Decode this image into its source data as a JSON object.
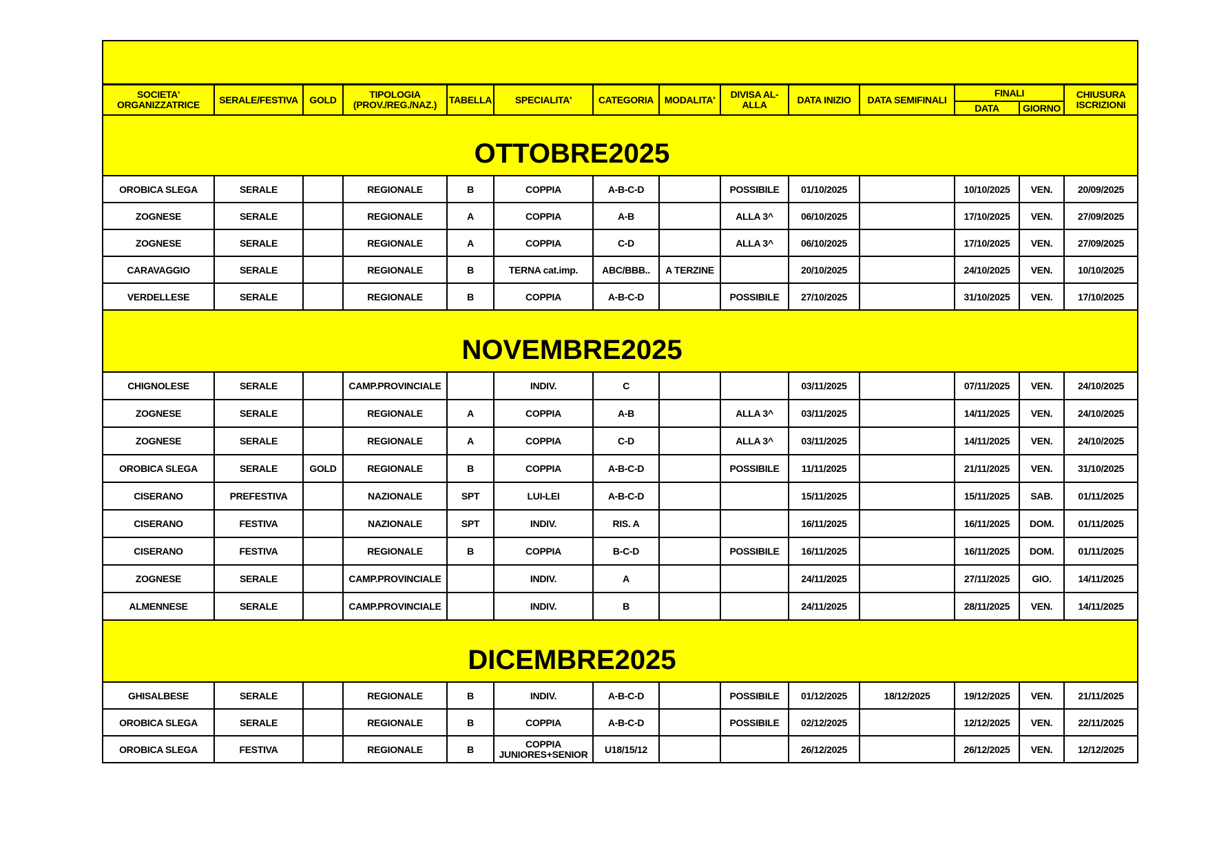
{
  "header": {
    "societa": "SOCIETA' ORGANIZZATRICE",
    "serale_festiva": "SERALE/FESTIVA",
    "gold": "GOLD",
    "tipologia": "TIPOLOGIA (PROV./REG./NAZ.)",
    "tabella": "TABELLA",
    "specialita": "SPECIALITA'",
    "categoria": "CATEGORIA",
    "modalita": "MODALITA'",
    "divisa": "DIVISA AL-ALLA",
    "data_inizio": "DATA INIZIO",
    "data_semifinali": "DATA SEMIFINALI",
    "finali": "FINALI",
    "finali_data": "DATA",
    "finali_giorno": "GIORNO",
    "chiusura": "CHIUSURA ISCRIZIONI"
  },
  "colors": {
    "highlight": "#ffff00",
    "border": "#000000"
  },
  "months": [
    {
      "title": "OTTOBRE2025",
      "rows": [
        [
          "OROBICA SLEGA",
          "SERALE",
          "",
          "REGIONALE",
          "B",
          "COPPIA",
          "A-B-C-D",
          "",
          "POSSIBILE",
          "01/10/2025",
          "",
          "10/10/2025",
          "VEN.",
          "20/09/2025"
        ],
        [
          "ZOGNESE",
          "SERALE",
          "",
          "REGIONALE",
          "A",
          "COPPIA",
          "A-B",
          "",
          "ALLA 3^",
          "06/10/2025",
          "",
          "17/10/2025",
          "VEN.",
          "27/09/2025"
        ],
        [
          "ZOGNESE",
          "SERALE",
          "",
          "REGIONALE",
          "A",
          "COPPIA",
          "C-D",
          "",
          "ALLA 3^",
          "06/10/2025",
          "",
          "17/10/2025",
          "VEN.",
          "27/09/2025"
        ],
        [
          "CARAVAGGIO",
          "SERALE",
          "",
          "REGIONALE",
          "B",
          "TERNA cat.imp.",
          "ABC/BBB..",
          "A TERZINE",
          "",
          "20/10/2025",
          "",
          "24/10/2025",
          "VEN.",
          "10/10/2025"
        ],
        [
          "VERDELLESE",
          "SERALE",
          "",
          "REGIONALE",
          "B",
          "COPPIA",
          "A-B-C-D",
          "",
          "POSSIBILE",
          "27/10/2025",
          "",
          "31/10/2025",
          "VEN.",
          "17/10/2025"
        ]
      ]
    },
    {
      "title": "NOVEMBRE2025",
      "rows": [
        [
          "CHIGNOLESE",
          "SERALE",
          "",
          "CAMP.PROVINCIALE",
          "",
          "INDIV.",
          "C",
          "",
          "",
          "03/11/2025",
          "",
          "07/11/2025",
          "VEN.",
          "24/10/2025"
        ],
        [
          "ZOGNESE",
          "SERALE",
          "",
          "REGIONALE",
          "A",
          "COPPIA",
          "A-B",
          "",
          "ALLA 3^",
          "03/11/2025",
          "",
          "14/11/2025",
          "VEN.",
          "24/10/2025"
        ],
        [
          "ZOGNESE",
          "SERALE",
          "",
          "REGIONALE",
          "A",
          "COPPIA",
          "C-D",
          "",
          "ALLA 3^",
          "03/11/2025",
          "",
          "14/11/2025",
          "VEN.",
          "24/10/2025"
        ],
        [
          "OROBICA SLEGA",
          "SERALE",
          "GOLD",
          "REGIONALE",
          "B",
          "COPPIA",
          "A-B-C-D",
          "",
          "POSSIBILE",
          "11/11/2025",
          "",
          "21/11/2025",
          "VEN.",
          "31/10/2025"
        ],
        [
          "CISERANO",
          "PREFESTIVA",
          "",
          "NAZIONALE",
          "SPT",
          "LUI-LEI",
          "A-B-C-D",
          "",
          "",
          "15/11/2025",
          "",
          "15/11/2025",
          "SAB.",
          "01/11/2025"
        ],
        [
          "CISERANO",
          "FESTIVA",
          "",
          "NAZIONALE",
          "SPT",
          "INDIV.",
          "RIS. A",
          "",
          "",
          "16/11/2025",
          "",
          "16/11/2025",
          "DOM.",
          "01/11/2025"
        ],
        [
          "CISERANO",
          "FESTIVA",
          "",
          "REGIONALE",
          "B",
          "COPPIA",
          "B-C-D",
          "",
          "POSSIBILE",
          "16/11/2025",
          "",
          "16/11/2025",
          "DOM.",
          "01/11/2025"
        ],
        [
          "ZOGNESE",
          "SERALE",
          "",
          "CAMP.PROVINCIALE",
          "",
          "INDIV.",
          "A",
          "",
          "",
          "24/11/2025",
          "",
          "27/11/2025",
          "GIO.",
          "14/11/2025"
        ],
        [
          "ALMENNESE",
          "SERALE",
          "",
          "CAMP.PROVINCIALE",
          "",
          "INDIV.",
          "B",
          "",
          "",
          "24/11/2025",
          "",
          "28/11/2025",
          "VEN.",
          "14/11/2025"
        ]
      ]
    },
    {
      "title": "DICEMBRE2025",
      "rows": [
        [
          "GHISALBESE",
          "SERALE",
          "",
          "REGIONALE",
          "B",
          "INDIV.",
          "A-B-C-D",
          "",
          "POSSIBILE",
          "01/12/2025",
          "18/12/2025",
          "19/12/2025",
          "VEN.",
          "21/11/2025"
        ],
        [
          "OROBICA SLEGA",
          "SERALE",
          "",
          "REGIONALE",
          "B",
          "COPPIA",
          "A-B-C-D",
          "",
          "POSSIBILE",
          "02/12/2025",
          "",
          "12/12/2025",
          "VEN.",
          "22/11/2025"
        ],
        [
          "OROBICA SLEGA",
          "FESTIVA",
          "",
          "REGIONALE",
          "B",
          "COPPIA JUNIORES+SENIOR",
          "U18/15/12",
          "",
          "",
          "26/12/2025",
          "",
          "26/12/2025",
          "VEN.",
          "12/12/2025"
        ]
      ]
    }
  ]
}
